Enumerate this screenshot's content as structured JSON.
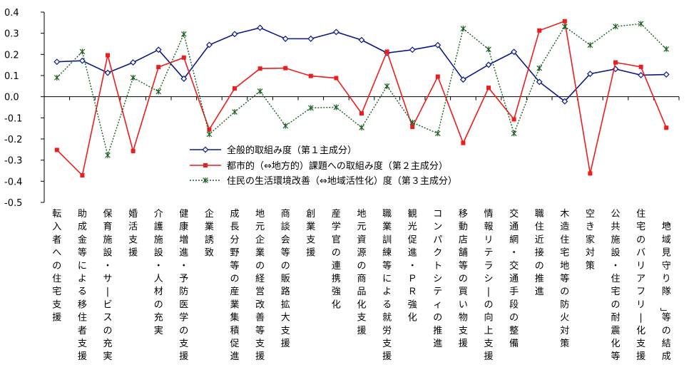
{
  "chart_data": {
    "type": "line",
    "title": "",
    "xlabel": "",
    "ylabel": "",
    "ylim": [
      -0.5,
      0.4
    ],
    "yticks": [
      "0.4",
      "0.3",
      "0.2",
      "0.1",
      "0.0",
      "-0.1",
      "-0.2",
      "-0.3",
      "-0.4",
      "-0.5"
    ],
    "grid": false,
    "legend_position": "center",
    "categories": [
      "転入者への住宅支援",
      "助成金等による移住者支援",
      "保育施設・サービスの充実",
      "婚活支援",
      "介護施設・人材の充実",
      "健康増進・予防医学の支援",
      "企業誘致",
      "成長分野等の産業集積促進",
      "地元企業の経営改善等支援",
      "商談会等の販路拡大支援",
      "創業支援",
      "産学官の連携強化",
      "地元資源の商品化支援",
      "職業訓練等による就労支援",
      "観光促進・ＰＲ強化",
      "コンパクトシティの推進",
      "移動店舗等の買い物支援",
      "情報リテラシーの向上支援",
      "交通網・交通手段の整備",
      "職住近接の推進",
      "木造住宅地等の防火対策",
      "空き家対策",
      "公共施設・住宅の耐震化等",
      "住宅のバリアフリー化支援",
      "「地域見守り隊」等の結成"
    ],
    "series": [
      {
        "name": "全般的取組み度（第１主成分）",
        "color": "#0a1a8c",
        "style": "solid",
        "marker": "diamond",
        "values": [
          0.165,
          0.17,
          0.113,
          0.162,
          0.222,
          0.085,
          0.245,
          0.296,
          0.326,
          0.274,
          0.274,
          0.306,
          0.268,
          0.207,
          0.222,
          0.244,
          0.081,
          0.151,
          0.212,
          0.07,
          -0.022,
          0.108,
          0.131,
          0.102,
          0.105
        ]
      },
      {
        "name": "都市的（⇔地方的）課題への取組み度（第２主成分）",
        "color": "#ee1c1c",
        "style": "solid",
        "marker": "square",
        "values": [
          -0.252,
          -0.372,
          0.196,
          -0.257,
          0.14,
          0.185,
          -0.155,
          0.039,
          0.133,
          0.135,
          0.098,
          0.088,
          -0.079,
          0.213,
          -0.143,
          0.095,
          -0.219,
          0.042,
          -0.107,
          0.313,
          0.357,
          -0.363,
          0.162,
          0.141,
          -0.147
        ]
      },
      {
        "name": "住民の生活環境改善（⇔地域活性化）度（第３主成分）",
        "color": "#1a5e20",
        "style": "dotted",
        "marker": "star",
        "values": [
          0.09,
          0.213,
          -0.277,
          0.09,
          0.024,
          0.296,
          -0.178,
          -0.072,
          0.026,
          -0.138,
          -0.053,
          -0.05,
          -0.146,
          0.05,
          -0.122,
          -0.174,
          0.322,
          0.224,
          -0.174,
          0.135,
          0.332,
          0.244,
          0.332,
          0.345,
          0.225
        ]
      }
    ]
  }
}
